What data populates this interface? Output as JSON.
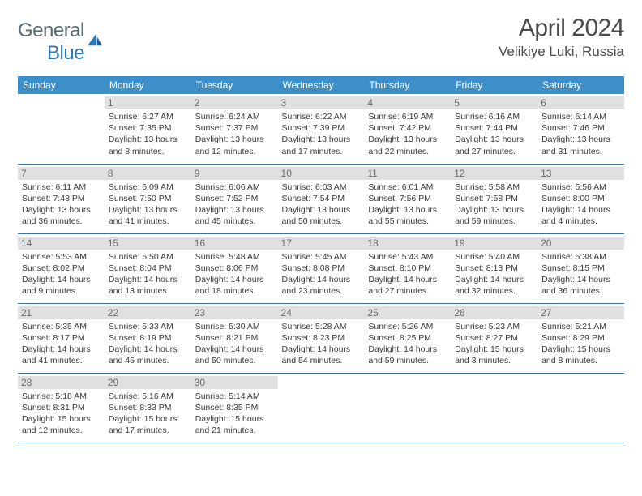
{
  "brand": {
    "g": "General",
    "b": "Blue"
  },
  "title": "April 2024",
  "location": "Velikiye Luki, Russia",
  "colors": {
    "header_bg": "#3d8fc9",
    "header_fg": "#ffffff",
    "row_divider": "#3d72a0",
    "daynum_bg": "#e0e0e0",
    "daynum_fg": "#6a6a6a",
    "body_text": "#3a3a3a",
    "title_text": "#4a4a4a",
    "logo_gray": "#5a6b78",
    "logo_blue": "#2f77b6"
  },
  "weekdays": [
    "Sunday",
    "Monday",
    "Tuesday",
    "Wednesday",
    "Thursday",
    "Friday",
    "Saturday"
  ],
  "cells": [
    [
      null,
      {
        "n": "1",
        "rise": "6:27 AM",
        "set": "7:35 PM",
        "dl": "13 hours and 8 minutes."
      },
      {
        "n": "2",
        "rise": "6:24 AM",
        "set": "7:37 PM",
        "dl": "13 hours and 12 minutes."
      },
      {
        "n": "3",
        "rise": "6:22 AM",
        "set": "7:39 PM",
        "dl": "13 hours and 17 minutes."
      },
      {
        "n": "4",
        "rise": "6:19 AM",
        "set": "7:42 PM",
        "dl": "13 hours and 22 minutes."
      },
      {
        "n": "5",
        "rise": "6:16 AM",
        "set": "7:44 PM",
        "dl": "13 hours and 27 minutes."
      },
      {
        "n": "6",
        "rise": "6:14 AM",
        "set": "7:46 PM",
        "dl": "13 hours and 31 minutes."
      }
    ],
    [
      {
        "n": "7",
        "rise": "6:11 AM",
        "set": "7:48 PM",
        "dl": "13 hours and 36 minutes."
      },
      {
        "n": "8",
        "rise": "6:09 AM",
        "set": "7:50 PM",
        "dl": "13 hours and 41 minutes."
      },
      {
        "n": "9",
        "rise": "6:06 AM",
        "set": "7:52 PM",
        "dl": "13 hours and 45 minutes."
      },
      {
        "n": "10",
        "rise": "6:03 AM",
        "set": "7:54 PM",
        "dl": "13 hours and 50 minutes."
      },
      {
        "n": "11",
        "rise": "6:01 AM",
        "set": "7:56 PM",
        "dl": "13 hours and 55 minutes."
      },
      {
        "n": "12",
        "rise": "5:58 AM",
        "set": "7:58 PM",
        "dl": "13 hours and 59 minutes."
      },
      {
        "n": "13",
        "rise": "5:56 AM",
        "set": "8:00 PM",
        "dl": "14 hours and 4 minutes."
      }
    ],
    [
      {
        "n": "14",
        "rise": "5:53 AM",
        "set": "8:02 PM",
        "dl": "14 hours and 9 minutes."
      },
      {
        "n": "15",
        "rise": "5:50 AM",
        "set": "8:04 PM",
        "dl": "14 hours and 13 minutes."
      },
      {
        "n": "16",
        "rise": "5:48 AM",
        "set": "8:06 PM",
        "dl": "14 hours and 18 minutes."
      },
      {
        "n": "17",
        "rise": "5:45 AM",
        "set": "8:08 PM",
        "dl": "14 hours and 23 minutes."
      },
      {
        "n": "18",
        "rise": "5:43 AM",
        "set": "8:10 PM",
        "dl": "14 hours and 27 minutes."
      },
      {
        "n": "19",
        "rise": "5:40 AM",
        "set": "8:13 PM",
        "dl": "14 hours and 32 minutes."
      },
      {
        "n": "20",
        "rise": "5:38 AM",
        "set": "8:15 PM",
        "dl": "14 hours and 36 minutes."
      }
    ],
    [
      {
        "n": "21",
        "rise": "5:35 AM",
        "set": "8:17 PM",
        "dl": "14 hours and 41 minutes."
      },
      {
        "n": "22",
        "rise": "5:33 AM",
        "set": "8:19 PM",
        "dl": "14 hours and 45 minutes."
      },
      {
        "n": "23",
        "rise": "5:30 AM",
        "set": "8:21 PM",
        "dl": "14 hours and 50 minutes."
      },
      {
        "n": "24",
        "rise": "5:28 AM",
        "set": "8:23 PM",
        "dl": "14 hours and 54 minutes."
      },
      {
        "n": "25",
        "rise": "5:26 AM",
        "set": "8:25 PM",
        "dl": "14 hours and 59 minutes."
      },
      {
        "n": "26",
        "rise": "5:23 AM",
        "set": "8:27 PM",
        "dl": "15 hours and 3 minutes."
      },
      {
        "n": "27",
        "rise": "5:21 AM",
        "set": "8:29 PM",
        "dl": "15 hours and 8 minutes."
      }
    ],
    [
      {
        "n": "28",
        "rise": "5:18 AM",
        "set": "8:31 PM",
        "dl": "15 hours and 12 minutes."
      },
      {
        "n": "29",
        "rise": "5:16 AM",
        "set": "8:33 PM",
        "dl": "15 hours and 17 minutes."
      },
      {
        "n": "30",
        "rise": "5:14 AM",
        "set": "8:35 PM",
        "dl": "15 hours and 21 minutes."
      },
      null,
      null,
      null,
      null
    ]
  ]
}
